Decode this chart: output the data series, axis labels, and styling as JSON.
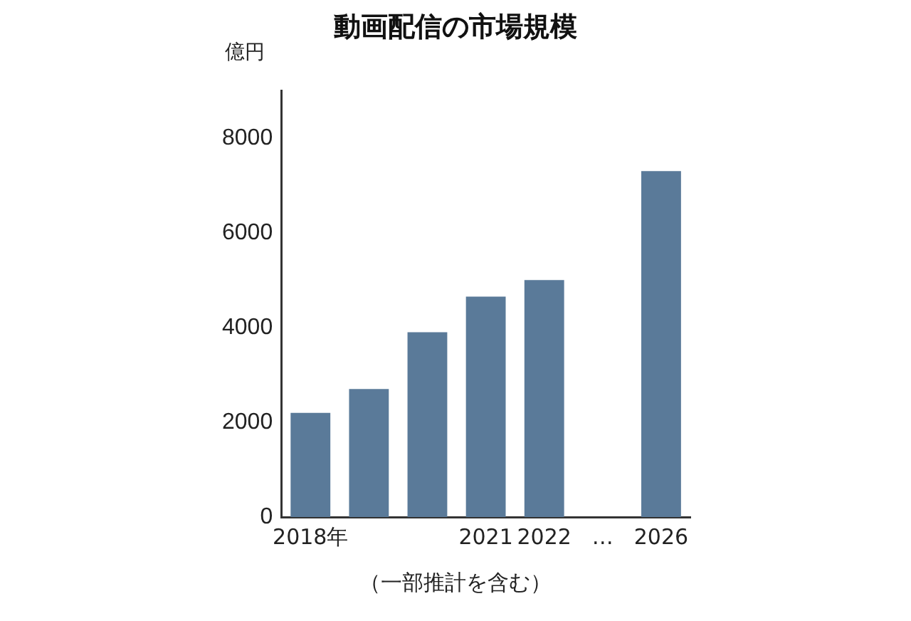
{
  "chart_data": {
    "type": "bar",
    "title": "動画配信の市場規模",
    "ylabel": "億円",
    "categories": [
      "2018年",
      null,
      null,
      "2021",
      "2022",
      "…",
      "2026"
    ],
    "values": [
      2200,
      2700,
      3900,
      4650,
      5000,
      null,
      7300
    ],
    "color": "#5a7a99",
    "ylim": [
      0,
      9000
    ],
    "yticks": [
      0,
      2000,
      4000,
      6000,
      8000
    ],
    "grid": false,
    "legend": false,
    "annotations": [
      "（一部推計を含む）"
    ]
  }
}
